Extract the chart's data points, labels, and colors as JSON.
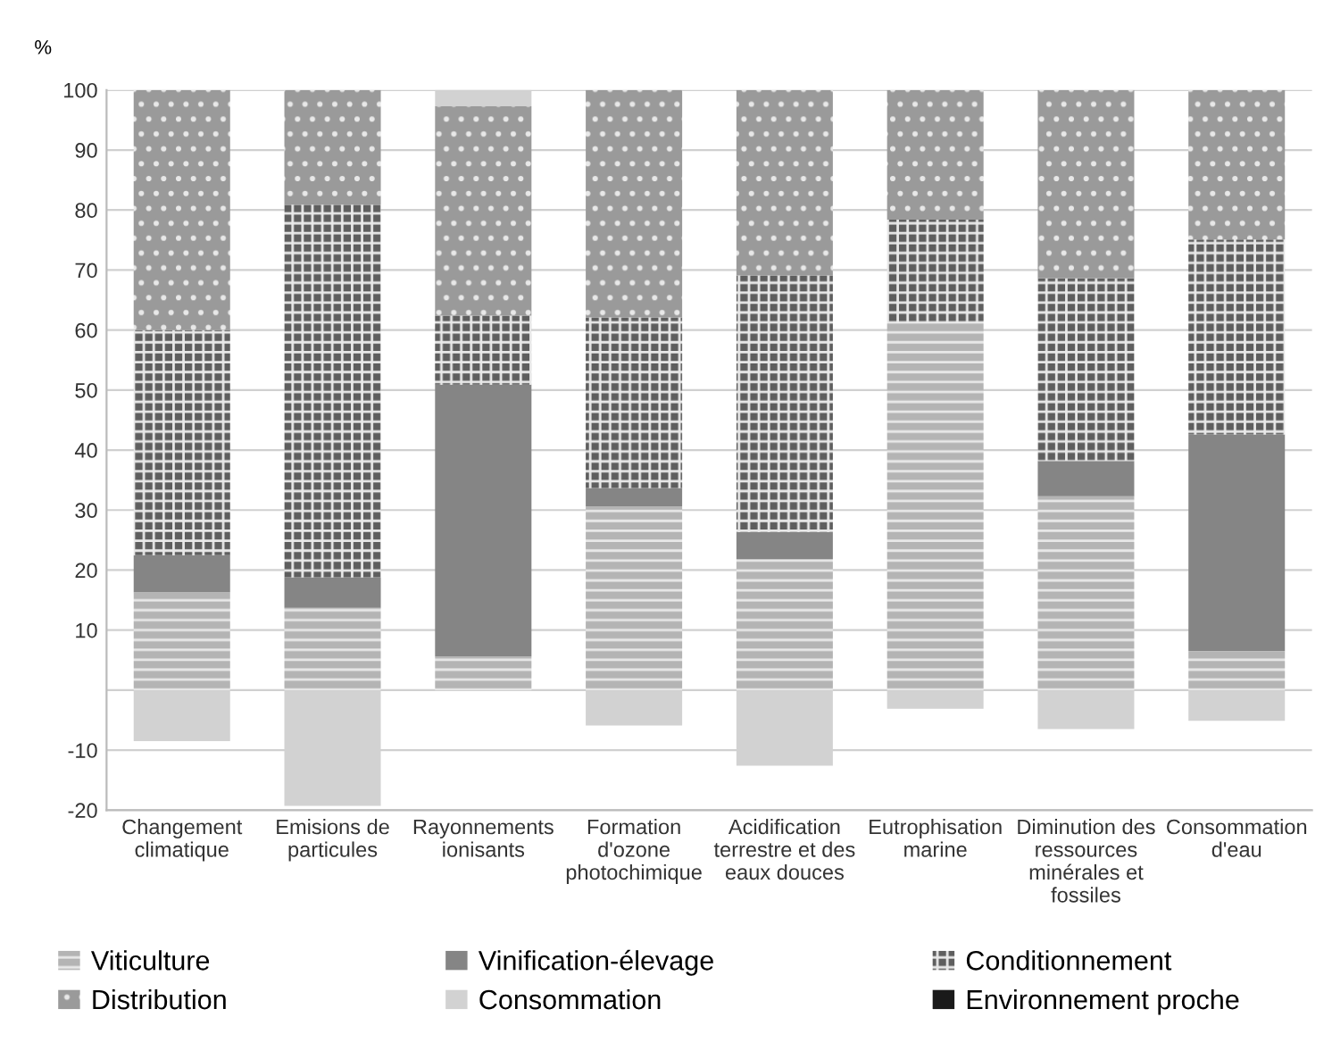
{
  "chart_data": {
    "type": "bar",
    "stacked": true,
    "ylabel": "%",
    "categories": [
      "Changement\nclimatique",
      "Emisions de\nparticules",
      "Rayonnements\nionisants",
      "Formation\nd'ozone\nphotochimique",
      "Acidification\nterrestre et des\neaux douces",
      "Eutrophisation\nmarine",
      "Diminution des\nressources\nminérales et\nfossiles",
      "Consommation\nd'eau"
    ],
    "series": [
      {
        "name": "Viticulture",
        "color": "#b4b4b4",
        "values": [
          16.3,
          13.7,
          5.6,
          30.6,
          21.8,
          61.2,
          32.3,
          6.5
        ]
      },
      {
        "name": "Vinification-élevage",
        "color": "#858585",
        "values": [
          6.2,
          5.1,
          45.3,
          3.1,
          4.5,
          0,
          5.9,
          36.1
        ]
      },
      {
        "name": "Conditionnement",
        "color": "#5e5e5e",
        "values": [
          37.5,
          62.1,
          11.5,
          28.4,
          42.8,
          17.2,
          30.4,
          32.5
        ]
      },
      {
        "name": "Distribution",
        "color": "#9a9a9a",
        "values": [
          40,
          19.1,
          34.9,
          37.9,
          30.9,
          21.6,
          31.4,
          24.9
        ]
      },
      {
        "name": "Consommation",
        "color": "#d2d2d2",
        "values": [
          -8.5,
          -19.3,
          2.7,
          -5.9,
          -12.6,
          -3.1,
          -6.5,
          -5.1
        ]
      },
      {
        "name": "Environnement proche",
        "color": "#1a1a1a",
        "values": [
          0,
          0,
          0,
          0,
          0,
          0,
          0,
          0
        ]
      }
    ],
    "ylim": [
      -20,
      100
    ],
    "yticks": [
      -20,
      -10,
      {
        "value": 0,
        "label": null
      },
      10,
      20,
      30,
      40,
      50,
      60,
      70,
      80,
      90,
      100
    ],
    "grid": "y",
    "legend": "bottom"
  }
}
